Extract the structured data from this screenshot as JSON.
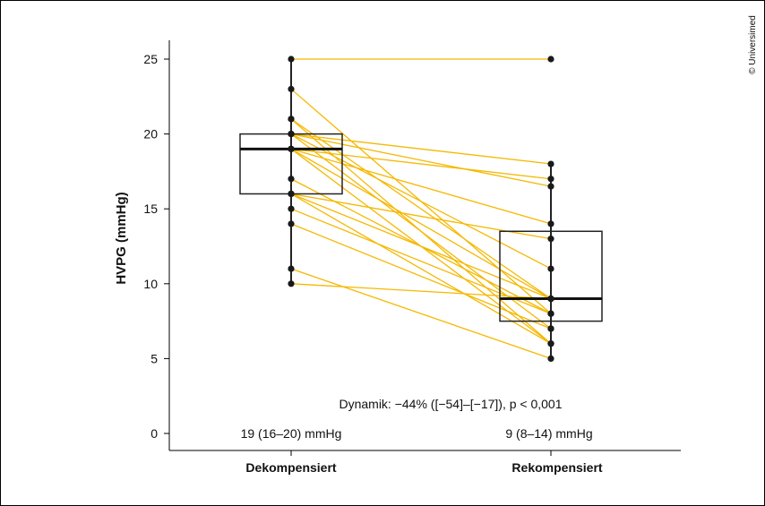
{
  "chart_data": {
    "type": "box-paired",
    "ylabel": "HVPG (mmHg)",
    "ylim": [
      0,
      26
    ],
    "yticks": [
      0,
      5,
      10,
      15,
      20,
      25
    ],
    "categories": [
      "Dekompensiert",
      "Rekompensiert"
    ],
    "summary_labels": [
      "19 (16–20) mmHg",
      "9 (8–14) mmHg"
    ],
    "annotation": "Dynamik: −44% ([−54]–[−17]), p < 0,001",
    "boxes": [
      {
        "q1": 16,
        "median": 19,
        "q3": 20,
        "whisker_low": 10,
        "whisker_high": 25
      },
      {
        "q1": 7.5,
        "median": 9,
        "q3": 13.5,
        "whisker_low": 5,
        "whisker_high": 18
      }
    ],
    "pairs": [
      [
        25,
        25
      ],
      [
        23,
        8
      ],
      [
        21,
        9
      ],
      [
        21,
        6
      ],
      [
        20,
        18
      ],
      [
        20,
        16.5
      ],
      [
        20,
        11
      ],
      [
        20,
        7
      ],
      [
        19,
        17
      ],
      [
        19,
        14
      ],
      [
        19,
        9
      ],
      [
        19,
        6
      ],
      [
        17,
        8
      ],
      [
        16,
        13
      ],
      [
        16,
        9
      ],
      [
        16,
        6
      ],
      [
        15,
        8
      ],
      [
        14,
        7
      ],
      [
        11,
        5
      ],
      [
        10,
        9
      ]
    ],
    "line_color": "#f5b800",
    "point_color": "#1a1a1a",
    "grid": false
  },
  "copyright": "© Universimed"
}
